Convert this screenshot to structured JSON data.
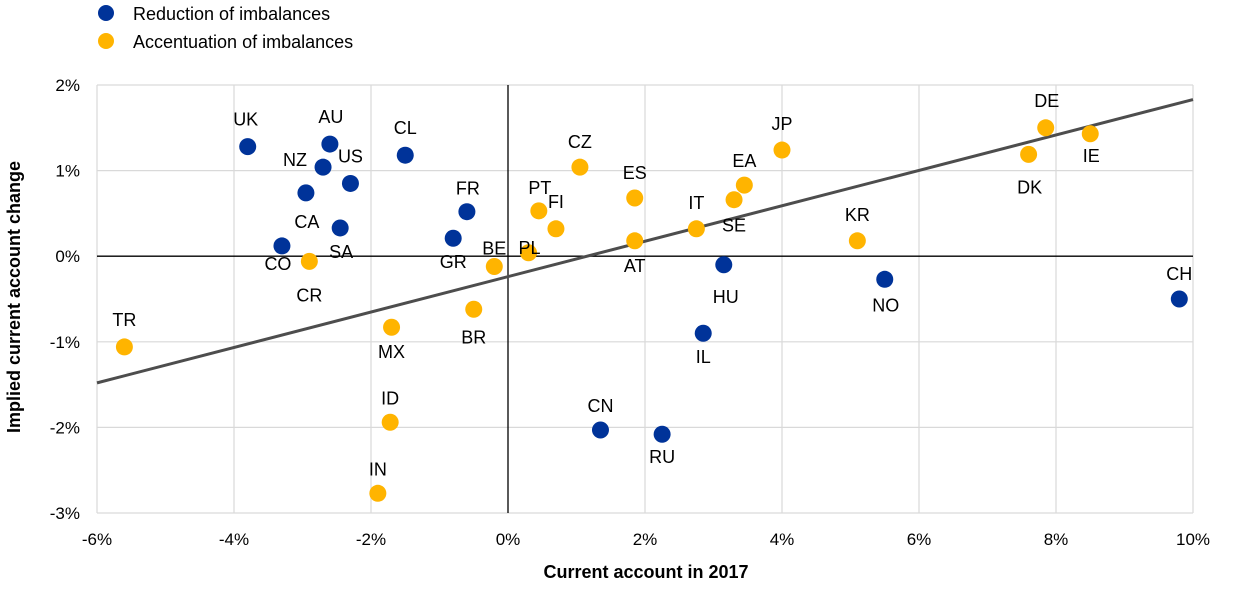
{
  "chart_data": {
    "type": "scatter",
    "xlabel": "Current account in 2017",
    "ylabel": "Implied current account change",
    "xlim": [
      -6,
      10
    ],
    "ylim": [
      -3,
      2
    ],
    "x_ticks": [
      "-6%",
      "-4%",
      "-2%",
      "0%",
      "2%",
      "4%",
      "6%",
      "8%",
      "10%"
    ],
    "y_ticks": [
      "2%",
      "1%",
      "0%",
      "-1%",
      "-2%",
      "-3%"
    ],
    "grid": true,
    "legend_position": "top-left",
    "series": [
      {
        "name": "Reduction of imbalances",
        "color": "#003399",
        "points": [
          {
            "label": "UK",
            "x": -3.8,
            "y": 1.28
          },
          {
            "label": "AU",
            "x": -2.6,
            "y": 1.31
          },
          {
            "label": "NZ",
            "x": -2.7,
            "y": 1.04
          },
          {
            "label": "US",
            "x": -2.3,
            "y": 0.85
          },
          {
            "label": "CA",
            "x": -2.95,
            "y": 0.74
          },
          {
            "label": "SA",
            "x": -2.45,
            "y": 0.33
          },
          {
            "label": "CO",
            "x": -3.3,
            "y": 0.12
          },
          {
            "label": "CL",
            "x": -1.5,
            "y": 1.18
          },
          {
            "label": "FR",
            "x": -0.6,
            "y": 0.52
          },
          {
            "label": "GR",
            "x": -0.8,
            "y": 0.21
          },
          {
            "label": "HU",
            "x": 3.15,
            "y": -0.1
          },
          {
            "label": "IL",
            "x": 2.85,
            "y": -0.9
          },
          {
            "label": "CN",
            "x": 1.35,
            "y": -2.03
          },
          {
            "label": "RU",
            "x": 2.25,
            "y": -2.08
          },
          {
            "label": "NO",
            "x": 5.5,
            "y": -0.27
          },
          {
            "label": "CH",
            "x": 9.8,
            "y": -0.5
          }
        ]
      },
      {
        "name": "Accentuation of imbalances",
        "color": "#FFB400",
        "points": [
          {
            "label": "TR",
            "x": -5.6,
            "y": -1.06
          },
          {
            "label": "CR",
            "x": -2.9,
            "y": -0.06
          },
          {
            "label": "MX",
            "x": -1.7,
            "y": -0.83
          },
          {
            "label": "ID",
            "x": -1.72,
            "y": -1.94
          },
          {
            "label": "IN",
            "x": -1.9,
            "y": -2.77
          },
          {
            "label": "BR",
            "x": -0.5,
            "y": -0.62
          },
          {
            "label": "BE",
            "x": -0.2,
            "y": -0.12
          },
          {
            "label": "PL",
            "x": 0.3,
            "y": 0.04
          },
          {
            "label": "PT",
            "x": 0.45,
            "y": 0.53
          },
          {
            "label": "FI",
            "x": 0.7,
            "y": 0.32
          },
          {
            "label": "CZ",
            "x": 1.05,
            "y": 1.04
          },
          {
            "label": "ES",
            "x": 1.85,
            "y": 0.68
          },
          {
            "label": "AT",
            "x": 1.85,
            "y": 0.18
          },
          {
            "label": "IT",
            "x": 2.75,
            "y": 0.32
          },
          {
            "label": "SE",
            "x": 3.3,
            "y": 0.66
          },
          {
            "label": "EA",
            "x": 3.45,
            "y": 0.83
          },
          {
            "label": "JP",
            "x": 4.0,
            "y": 1.24
          },
          {
            "label": "KR",
            "x": 5.1,
            "y": 0.18
          },
          {
            "label": "DK",
            "x": 7.6,
            "y": 1.19
          },
          {
            "label": "DE",
            "x": 7.85,
            "y": 1.5
          },
          {
            "label": "IE",
            "x": 8.5,
            "y": 1.43
          }
        ]
      }
    ],
    "trend_line": {
      "color": "#4d4d4d",
      "points": [
        {
          "x": -6,
          "y": -1.48
        },
        {
          "x": 10,
          "y": 1.83
        }
      ]
    }
  }
}
